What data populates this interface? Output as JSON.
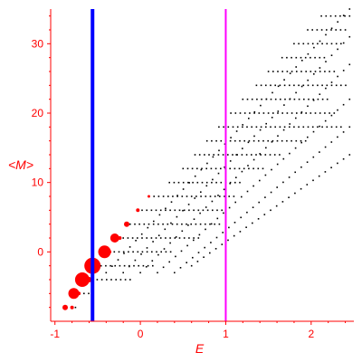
{
  "chart_data": {
    "type": "scatter",
    "title": "",
    "xlabel": "E",
    "ylabel": "<M>",
    "xlim": [
      -1.05,
      2.5
    ],
    "ylim": [
      -10,
      35
    ],
    "xticks": [
      -1,
      0,
      1,
      2
    ],
    "xtick_labels": [
      "-1",
      "0",
      "1",
      "2"
    ],
    "yticks": [
      0,
      10,
      20,
      30
    ],
    "ytick_labels": [
      "0",
      "10",
      "20",
      "30"
    ],
    "axis_color": "#ff0000",
    "grid": false,
    "vertical_lines": [
      {
        "x": -0.56,
        "color": "#0000ff"
      },
      {
        "x": 1.0,
        "color": "#ff00ff"
      }
    ],
    "highlighted_points": [
      {
        "x": -0.88,
        "y": -8,
        "size": 3
      },
      {
        "x": -0.8,
        "y": -8,
        "size": 2
      },
      {
        "x": -0.78,
        "y": -6,
        "size": 6
      },
      {
        "x": -0.72,
        "y": -6,
        "size": 2
      },
      {
        "x": -0.68,
        "y": -4,
        "size": 8
      },
      {
        "x": -0.6,
        "y": -4,
        "size": 3
      },
      {
        "x": -0.56,
        "y": -2,
        "size": 9
      },
      {
        "x": -0.5,
        "y": -2,
        "size": 3
      },
      {
        "x": -0.42,
        "y": 0,
        "size": 7
      },
      {
        "x": -0.36,
        "y": 0,
        "size": 2
      },
      {
        "x": -0.3,
        "y": 2,
        "size": 5
      },
      {
        "x": -0.24,
        "y": 2,
        "size": 2
      },
      {
        "x": -0.16,
        "y": 4,
        "size": 3
      },
      {
        "x": -0.03,
        "y": 6,
        "size": 2
      },
      {
        "x": 0.1,
        "y": 8,
        "size": 1.5
      }
    ],
    "highlight_color": "#ff0000",
    "point_color": "#000000",
    "scatter_rows": [
      {
        "y": -8,
        "x_start": -0.76,
        "x_end": -0.76
      },
      {
        "y": -6,
        "x_start": -0.66,
        "x_end": -0.6
      },
      {
        "y": -4,
        "x_start": -0.56,
        "x_end": -0.1
      },
      {
        "y": -2,
        "x_start": -0.46,
        "x_end": 0.16
      },
      {
        "y": 0,
        "x_start": -0.36,
        "x_end": 0.4
      },
      {
        "y": 2,
        "x_start": -0.2,
        "x_end": 0.68
      },
      {
        "y": 4,
        "x_start": -0.12,
        "x_end": 0.94
      },
      {
        "y": 6,
        "x_start": 0.02,
        "x_end": 1.0
      },
      {
        "y": 8,
        "x_start": 0.16,
        "x_end": 1.1
      },
      {
        "y": 10,
        "x_start": 0.34,
        "x_end": 1.2
      },
      {
        "y": 12,
        "x_start": 0.5,
        "x_end": 1.45
      },
      {
        "y": 14,
        "x_start": 0.64,
        "x_end": 1.65
      },
      {
        "y": 16,
        "x_start": 0.78,
        "x_end": 1.98
      },
      {
        "y": 18,
        "x_start": 0.92,
        "x_end": 2.4
      },
      {
        "y": 20,
        "x_start": 1.06,
        "x_end": 2.3
      },
      {
        "y": 22,
        "x_start": 1.2,
        "x_end": 2.2
      },
      {
        "y": 24,
        "x_start": 1.36,
        "x_end": 2.45
      },
      {
        "y": 26,
        "x_start": 1.5,
        "x_end": 2.3
      },
      {
        "y": 28,
        "x_start": 1.66,
        "x_end": 2.2
      },
      {
        "y": 30,
        "x_start": 1.8,
        "x_end": 2.4
      },
      {
        "y": 32,
        "x_start": 1.96,
        "x_end": 2.45
      },
      {
        "y": 34,
        "x_start": 2.12,
        "x_end": 2.45
      }
    ],
    "diagonal_series": [
      {
        "x_start": -0.4,
        "y_start": -3,
        "x_end": 2.45,
        "y_end": 35
      },
      {
        "x_start": -0.2,
        "y_start": -3,
        "x_end": 2.45,
        "y_end": 31
      },
      {
        "x_start": 0.0,
        "y_start": -3,
        "x_end": 2.45,
        "y_end": 27
      },
      {
        "x_start": 0.2,
        "y_start": -3,
        "x_end": 2.45,
        "y_end": 22
      },
      {
        "x_start": 0.4,
        "y_start": -3,
        "x_end": 2.45,
        "y_end": 18
      },
      {
        "x_start": 0.6,
        "y_start": -2,
        "x_end": 2.45,
        "y_end": 14
      }
    ]
  }
}
